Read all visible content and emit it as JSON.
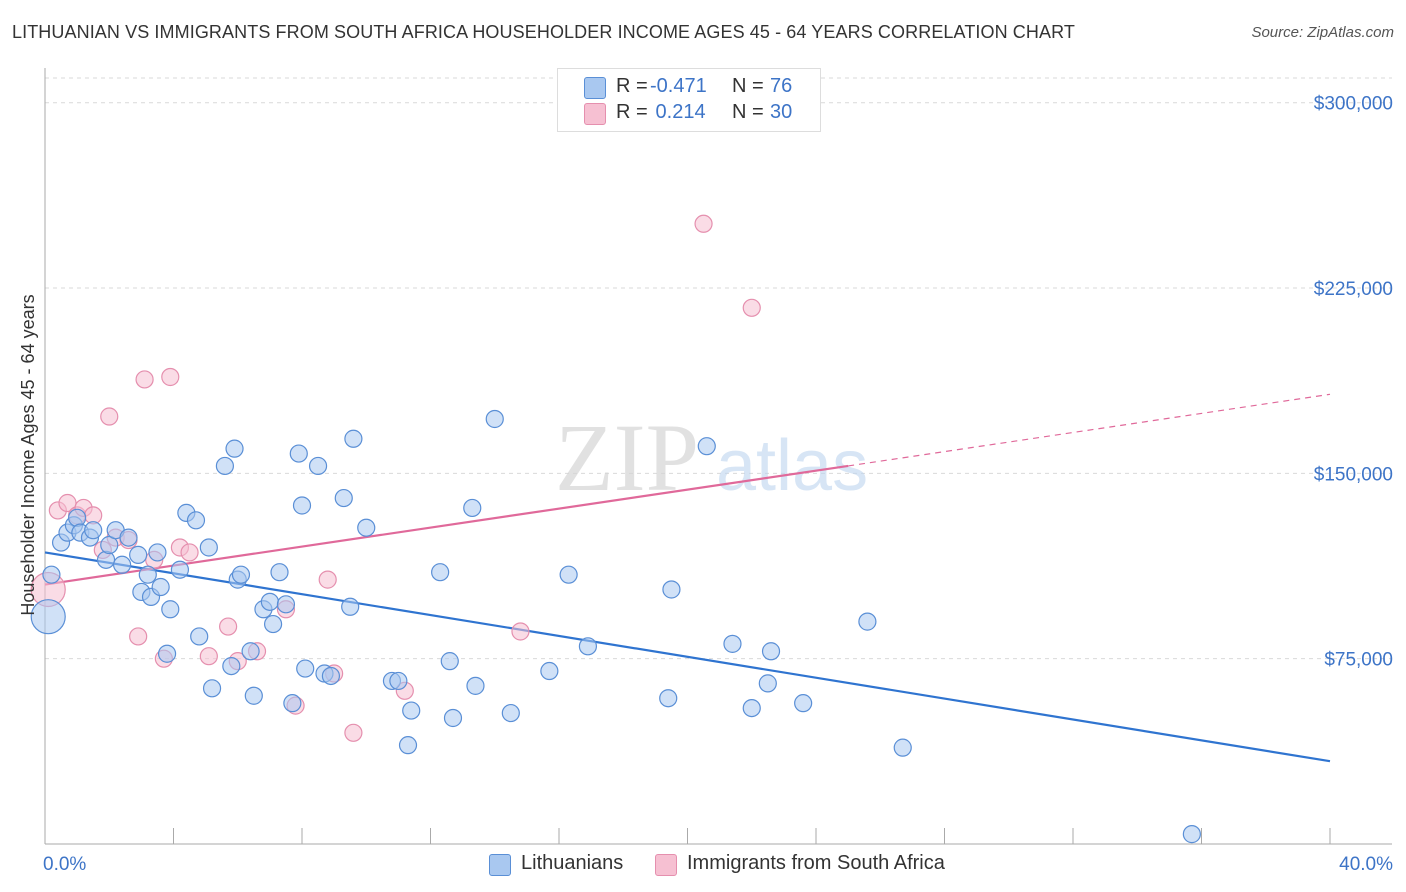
{
  "title": "LITHUANIAN VS IMMIGRANTS FROM SOUTH AFRICA HOUSEHOLDER INCOME AGES 45 - 64 YEARS CORRELATION CHART",
  "source": "Source: ZipAtlas.com",
  "watermark": {
    "zip": "ZIP",
    "atlas": "atlas"
  },
  "legend_top": [
    {
      "r_label": "R =",
      "r_value": "-0.471",
      "n_label": "N =",
      "n_value": "76"
    },
    {
      "r_label": "R =",
      "r_value": " 0.214",
      "n_label": "N =",
      "n_value": "30"
    }
  ],
  "legend_bottom": [
    "Lithuanians",
    "Immigrants from South Africa"
  ],
  "colors": {
    "blue_fill": "#a9c8f0",
    "blue_stroke": "#5a8fd6",
    "blue_line": "#2f74d0",
    "pink_fill": "#f6c0d2",
    "pink_stroke": "#e58fae",
    "pink_line": "#e0699a",
    "axis_label": "#3d74c7",
    "grid": "#d9d9d9"
  },
  "chart_data": {
    "type": "scatter",
    "title": "LITHUANIAN VS IMMIGRANTS FROM SOUTH AFRICA HOUSEHOLDER INCOME AGES 45 - 64 YEARS CORRELATION CHART",
    "xlabel": "",
    "ylabel": "Householder Income Ages 45 - 64 years",
    "xlim": [
      0,
      40
    ],
    "ylim": [
      0,
      310000
    ],
    "x_tick_labels": [
      "0.0%",
      "40.0%"
    ],
    "y_ticks": [
      75000,
      150000,
      225000,
      300000
    ],
    "y_tick_labels": [
      "$75,000",
      "$150,000",
      "$225,000",
      "$300,000"
    ],
    "grid": true,
    "legend_position": "top-center",
    "series": [
      {
        "name": "Lithuanians",
        "r": -0.471,
        "n": 76,
        "trend": {
          "x0": 0,
          "y0": 118000,
          "x1": 40,
          "y1": 33500
        },
        "points": [
          [
            0.1,
            92000,
            "L"
          ],
          [
            0.2,
            109000
          ],
          [
            0.5,
            122000
          ],
          [
            0.7,
            126000
          ],
          [
            0.9,
            129000
          ],
          [
            1.0,
            132000
          ],
          [
            1.1,
            126000
          ],
          [
            1.4,
            124000
          ],
          [
            1.5,
            127000
          ],
          [
            1.9,
            115000
          ],
          [
            2.0,
            121000
          ],
          [
            2.2,
            127000
          ],
          [
            2.4,
            113000
          ],
          [
            2.6,
            124000
          ],
          [
            2.9,
            117000
          ],
          [
            3.0,
            102000
          ],
          [
            3.2,
            109000
          ],
          [
            3.3,
            100000
          ],
          [
            3.5,
            118000
          ],
          [
            3.6,
            104000
          ],
          [
            3.8,
            77000
          ],
          [
            3.9,
            95000
          ],
          [
            4.2,
            111000
          ],
          [
            4.4,
            134000
          ],
          [
            4.7,
            131000
          ],
          [
            4.8,
            84000
          ],
          [
            5.1,
            120000
          ],
          [
            5.2,
            63000
          ],
          [
            5.6,
            153000
          ],
          [
            5.8,
            72000
          ],
          [
            5.9,
            160000
          ],
          [
            6.0,
            107000
          ],
          [
            6.1,
            109000
          ],
          [
            6.4,
            78000
          ],
          [
            6.5,
            60000
          ],
          [
            6.8,
            95000
          ],
          [
            7.0,
            98000
          ],
          [
            7.1,
            89000
          ],
          [
            7.3,
            110000
          ],
          [
            7.5,
            97000
          ],
          [
            7.7,
            57000
          ],
          [
            7.9,
            158000
          ],
          [
            8.0,
            137000
          ],
          [
            8.1,
            71000
          ],
          [
            8.5,
            153000
          ],
          [
            8.7,
            69000
          ],
          [
            8.9,
            68000
          ],
          [
            9.3,
            140000
          ],
          [
            9.5,
            96000
          ],
          [
            9.6,
            164000
          ],
          [
            10.0,
            128000
          ],
          [
            10.8,
            66000
          ],
          [
            11.0,
            66000
          ],
          [
            11.3,
            40000
          ],
          [
            11.4,
            54000
          ],
          [
            12.3,
            110000
          ],
          [
            12.6,
            74000
          ],
          [
            12.7,
            51000
          ],
          [
            13.3,
            136000
          ],
          [
            13.4,
            64000
          ],
          [
            14.0,
            172000
          ],
          [
            14.5,
            53000
          ],
          [
            15.7,
            70000
          ],
          [
            16.3,
            109000
          ],
          [
            16.9,
            80000
          ],
          [
            19.4,
            59000
          ],
          [
            19.5,
            103000
          ],
          [
            20.6,
            161000
          ],
          [
            21.4,
            81000
          ],
          [
            22.0,
            55000
          ],
          [
            22.5,
            65000
          ],
          [
            22.6,
            78000
          ],
          [
            23.6,
            57000
          ],
          [
            25.6,
            90000
          ],
          [
            26.7,
            39000
          ],
          [
            35.7,
            4000
          ]
        ]
      },
      {
        "name": "Immigrants from South Africa",
        "r": 0.214,
        "n": 30,
        "trend": {
          "x0": 0,
          "y0": 105000,
          "x1": 25,
          "y1": 153000,
          "dashed_to_x": 40,
          "dashed_to_y": 182000
        },
        "points": [
          [
            0.1,
            103000,
            "L"
          ],
          [
            0.4,
            135000
          ],
          [
            0.7,
            138000
          ],
          [
            1.0,
            133000
          ],
          [
            1.2,
            136000
          ],
          [
            1.5,
            133000
          ],
          [
            1.8,
            119000
          ],
          [
            2.2,
            124000
          ],
          [
            2.6,
            123000
          ],
          [
            2.0,
            173000
          ],
          [
            2.9,
            84000
          ],
          [
            3.1,
            188000
          ],
          [
            3.4,
            115000
          ],
          [
            3.7,
            75000
          ],
          [
            3.9,
            189000
          ],
          [
            4.2,
            120000
          ],
          [
            4.5,
            118000
          ],
          [
            5.1,
            76000
          ],
          [
            5.7,
            88000
          ],
          [
            6.0,
            74000
          ],
          [
            6.6,
            78000
          ],
          [
            7.5,
            95000
          ],
          [
            7.8,
            56000
          ],
          [
            8.8,
            107000
          ],
          [
            9.0,
            69000
          ],
          [
            9.6,
            45000
          ],
          [
            11.2,
            62000
          ],
          [
            14.8,
            86000
          ],
          [
            20.5,
            251000
          ],
          [
            22.0,
            217000
          ]
        ]
      }
    ]
  }
}
